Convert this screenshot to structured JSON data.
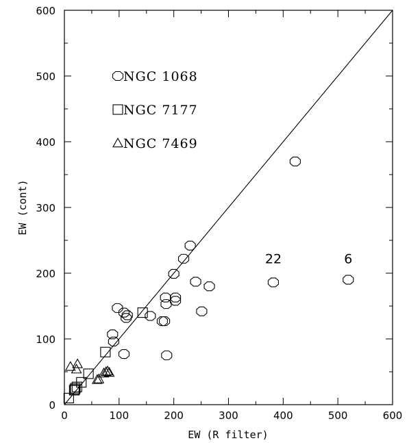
{
  "chart_data": {
    "type": "scatter",
    "xlabel": "EW (R filter)",
    "ylabel": "EW (cont)",
    "xlim": [
      0,
      600
    ],
    "ylim": [
      0,
      600
    ],
    "x_ticks": [
      "0",
      "100",
      "200",
      "300",
      "400",
      "500",
      "600"
    ],
    "y_ticks": [
      "0",
      "100",
      "200",
      "300",
      "400",
      "500",
      "600"
    ],
    "reference_line": {
      "type": "y=x",
      "from": [
        0,
        0
      ],
      "to": [
        600,
        600
      ]
    },
    "legend_position": "top-left",
    "series": [
      {
        "name": "NGC  1068",
        "marker": "octagon",
        "points": [
          [
            422,
            370
          ],
          [
            519,
            190
          ],
          [
            382,
            186
          ],
          [
            230,
            242
          ],
          [
            218,
            222
          ],
          [
            200,
            199
          ],
          [
            240,
            187
          ],
          [
            265,
            180
          ],
          [
            251,
            142
          ],
          [
            185,
            163
          ],
          [
            186,
            153
          ],
          [
            203,
            163
          ],
          [
            203,
            158
          ],
          [
            179,
            127
          ],
          [
            183,
            127
          ],
          [
            157,
            135
          ],
          [
            113,
            132
          ],
          [
            115,
            136
          ],
          [
            109,
            140
          ],
          [
            97,
            147
          ],
          [
            88,
            107
          ],
          [
            90,
            96
          ],
          [
            109,
            77
          ],
          [
            187,
            75
          ]
        ]
      },
      {
        "name": "NGC  7177",
        "marker": "square",
        "points": [
          [
            143,
            140
          ],
          [
            75,
            80
          ],
          [
            44,
            47
          ],
          [
            31,
            34
          ],
          [
            23,
            27
          ],
          [
            20,
            25
          ],
          [
            19,
            23
          ],
          [
            18,
            22
          ],
          [
            8,
            10
          ]
        ]
      },
      {
        "name": "NGC  7469",
        "marker": "triangle",
        "points": [
          [
            11,
            58
          ],
          [
            24,
            62
          ],
          [
            22,
            54
          ],
          [
            60,
            38
          ],
          [
            63,
            39
          ],
          [
            72,
            48
          ],
          [
            76,
            50
          ],
          [
            79,
            51
          ],
          [
            82,
            49
          ]
        ]
      }
    ],
    "annotations": [
      {
        "text": "22",
        "x": 382,
        "y": 215
      },
      {
        "text": "6",
        "x": 519,
        "y": 215
      }
    ]
  }
}
